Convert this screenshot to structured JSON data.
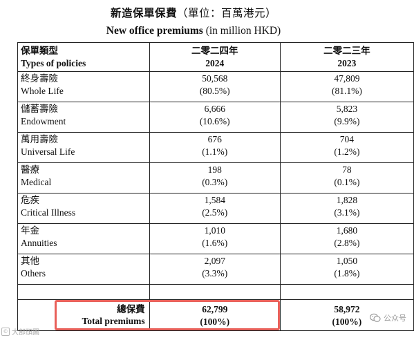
{
  "title": {
    "zh_main": "新造保單保費",
    "zh_unit": "（單位：百萬港元）",
    "en_main": "New office premiums",
    "en_unit": "(in million HKD)"
  },
  "table": {
    "header": {
      "type_zh": "保單類型",
      "type_en": "Types of policies",
      "year1_zh": "二零二四年",
      "year1": "2024",
      "year2_zh": "二零二三年",
      "year2": "2023"
    },
    "rows": [
      {
        "zh": "終身壽險",
        "en": "Whole Life",
        "v2024": "50,568",
        "p2024": "(80.5%)",
        "v2023": "47,809",
        "p2023": "(81.1%)"
      },
      {
        "zh": "儲蓄壽險",
        "en": "Endowment",
        "v2024": "6,666",
        "p2024": "(10.6%)",
        "v2023": "5,823",
        "p2023": "(9.9%)"
      },
      {
        "zh": "萬用壽險",
        "en": "Universal Life",
        "v2024": "676",
        "p2024": "(1.1%)",
        "v2023": "704",
        "p2023": "(1.2%)"
      },
      {
        "zh": "醫療",
        "en": "Medical",
        "v2024": "198",
        "p2024": "(0.3%)",
        "v2023": "78",
        "p2023": "(0.1%)"
      },
      {
        "zh": "危疾",
        "en": "Critical Illness",
        "v2024": "1,584",
        "p2024": "(2.5%)",
        "v2023": "1,828",
        "p2023": "(3.1%)"
      },
      {
        "zh": "年金",
        "en": "Annuities",
        "v2024": "1,010",
        "p2024": "(1.6%)",
        "v2023": "1,680",
        "p2023": "(2.8%)"
      },
      {
        "zh": "其他",
        "en": "Others",
        "v2024": "2,097",
        "p2024": "(3.3%)",
        "v2023": "1,050",
        "p2023": "(1.8%)"
      }
    ],
    "total": {
      "zh": "總保費",
      "en": "Total premiums",
      "v2024": "62,799",
      "p2024": "(100%)",
      "v2023": "58,972",
      "p2023": "(100%)"
    }
  },
  "highlight_color": "#e8605a",
  "watermarks": {
    "left_text": "大部頭圖",
    "right_text": "公众号",
    "right_icon": "wechat-icon"
  }
}
